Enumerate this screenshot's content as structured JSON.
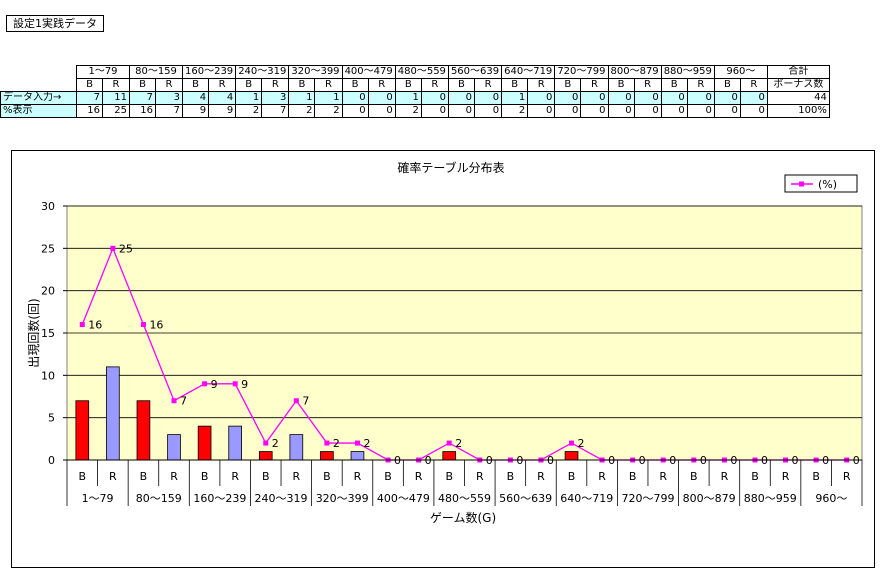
{
  "sheet_title": "設定1実践データ",
  "table": {
    "groups": [
      "1〜79",
      "80〜159",
      "160〜239",
      "240〜319",
      "320〜399",
      "400〜479",
      "480〜559",
      "560〜639",
      "640〜719",
      "720〜799",
      "800〜879",
      "880〜959",
      "960〜"
    ],
    "sub_headers": [
      "B",
      "R"
    ],
    "total_header": "合計",
    "total_sub_header": "ボーナス数",
    "rows": [
      {
        "label": "データ入力→",
        "values": [
          "7",
          "11",
          "7",
          "3",
          "4",
          "4",
          "1",
          "3",
          "1",
          "1",
          "0",
          "0",
          "1",
          "0",
          "0",
          "0",
          "1",
          "0",
          "0",
          "0",
          "0",
          "0",
          "0",
          "0",
          "0",
          "0"
        ],
        "total": "44"
      },
      {
        "label": "%表示",
        "values": [
          "16",
          "25",
          "16",
          "7",
          "9",
          "9",
          "2",
          "7",
          "2",
          "2",
          "0",
          "0",
          "2",
          "0",
          "0",
          "0",
          "2",
          "0",
          "0",
          "0",
          "0",
          "0",
          "0",
          "0",
          "0",
          "0"
        ],
        "total": "100%"
      }
    ]
  },
  "chart_data": {
    "type": "bar",
    "title": "確率テーブル分布表",
    "xlabel": "ゲーム数(G)",
    "ylabel": "出現回数(回)",
    "ylim": [
      0,
      30
    ],
    "yticks": [
      0,
      5,
      10,
      15,
      20,
      25,
      30
    ],
    "grid": true,
    "legend_position": "top-right",
    "groups": [
      "1〜79",
      "80〜159",
      "160〜239",
      "240〜319",
      "320〜399",
      "400〜479",
      "480〜559",
      "560〜639",
      "640〜719",
      "720〜799",
      "800〜879",
      "880〜959",
      "960〜"
    ],
    "categories": [
      "B",
      "R",
      "B",
      "R",
      "B",
      "R",
      "B",
      "R",
      "B",
      "R",
      "B",
      "R",
      "B",
      "R",
      "B",
      "R",
      "B",
      "R",
      "B",
      "R",
      "B",
      "R",
      "B",
      "R",
      "B",
      "R"
    ],
    "bar_values": [
      7,
      11,
      7,
      3,
      4,
      4,
      1,
      3,
      1,
      1,
      0,
      0,
      1,
      0,
      0,
      0,
      1,
      0,
      0,
      0,
      0,
      0,
      0,
      0,
      0,
      0
    ],
    "bar_colors": {
      "B": "#ff0000",
      "R": "#9999ff"
    },
    "series": [
      {
        "name": "(%)",
        "type": "line",
        "color": "#ff00ff",
        "values": [
          16,
          25,
          16,
          7,
          9,
          9,
          2,
          7,
          2,
          2,
          0,
          0,
          2,
          0,
          0,
          0,
          2,
          0,
          0,
          0,
          0,
          0,
          0,
          0,
          0,
          0
        ],
        "labels": [
          "16",
          "25",
          "16",
          "7",
          "9",
          "9",
          "2",
          "7",
          "2",
          "2",
          "0",
          "0",
          "2",
          "0",
          "0",
          "0",
          "2",
          "0",
          "0",
          "0",
          "0",
          "0",
          "0",
          "0",
          "0",
          "0"
        ]
      }
    ],
    "plot_background": "#ffffcc"
  }
}
